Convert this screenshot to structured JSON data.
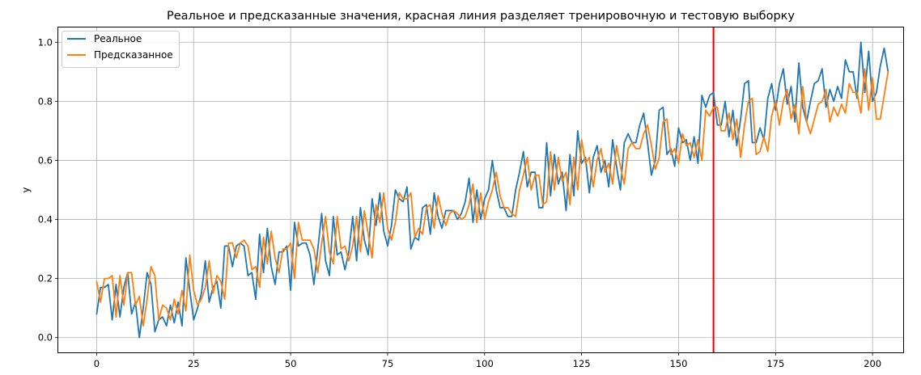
{
  "chart_data": {
    "type": "line",
    "title": "Реальное и предсказанные значения, красная линия разделяет тренировочную и тестовую выборку",
    "xlabel": "",
    "ylabel": "y",
    "xlim": [
      -9.9,
      207.9
    ],
    "ylim": [
      -0.05,
      1.05
    ],
    "xticks": [
      0,
      25,
      50,
      75,
      100,
      125,
      150,
      175,
      200
    ],
    "yticks": [
      0.0,
      0.2,
      0.4,
      0.6,
      0.8,
      1.0
    ],
    "xtick_labels": [
      "0",
      "25",
      "50",
      "75",
      "100",
      "125",
      "150",
      "175",
      "200"
    ],
    "ytick_labels": [
      "0.0",
      "0.2",
      "0.4",
      "0.6",
      "0.8",
      "1.0"
    ],
    "grid": true,
    "legend_position": "upper left",
    "split_line": {
      "x": 159,
      "color": "#e00000"
    },
    "series": [
      {
        "name": "Реальное",
        "color": "#1f77b4",
        "values": [
          0.08,
          0.17,
          0.17,
          0.18,
          0.06,
          0.18,
          0.07,
          0.17,
          0.22,
          0.08,
          0.12,
          0.0,
          0.1,
          0.22,
          0.18,
          0.02,
          0.06,
          0.07,
          0.04,
          0.11,
          0.05,
          0.12,
          0.04,
          0.27,
          0.16,
          0.06,
          0.1,
          0.15,
          0.26,
          0.12,
          0.17,
          0.19,
          0.1,
          0.31,
          0.31,
          0.24,
          0.31,
          0.32,
          0.31,
          0.21,
          0.22,
          0.13,
          0.35,
          0.22,
          0.37,
          0.24,
          0.18,
          0.29,
          0.29,
          0.31,
          0.16,
          0.39,
          0.31,
          0.32,
          0.32,
          0.28,
          0.18,
          0.3,
          0.42,
          0.26,
          0.21,
          0.41,
          0.28,
          0.29,
          0.23,
          0.29,
          0.41,
          0.26,
          0.44,
          0.33,
          0.28,
          0.47,
          0.38,
          0.49,
          0.36,
          0.31,
          0.38,
          0.5,
          0.47,
          0.46,
          0.51,
          0.3,
          0.34,
          0.33,
          0.44,
          0.45,
          0.35,
          0.49,
          0.41,
          0.37,
          0.43,
          0.43,
          0.43,
          0.4,
          0.42,
          0.46,
          0.54,
          0.39,
          0.5,
          0.4,
          0.47,
          0.5,
          0.6,
          0.5,
          0.44,
          0.44,
          0.41,
          0.41,
          0.5,
          0.56,
          0.63,
          0.51,
          0.56,
          0.56,
          0.44,
          0.44,
          0.66,
          0.48,
          0.62,
          0.52,
          0.56,
          0.43,
          0.62,
          0.48,
          0.7,
          0.59,
          0.61,
          0.49,
          0.61,
          0.65,
          0.56,
          0.6,
          0.51,
          0.67,
          0.58,
          0.5,
          0.66,
          0.69,
          0.66,
          0.66,
          0.72,
          0.76,
          0.66,
          0.55,
          0.6,
          0.77,
          0.78,
          0.62,
          0.64,
          0.58,
          0.71,
          0.66,
          0.67,
          0.6,
          0.68,
          0.59,
          0.82,
          0.78,
          0.82,
          0.83,
          0.72,
          0.72,
          0.8,
          0.68,
          0.77,
          0.65,
          0.74,
          0.86,
          0.87,
          0.66,
          0.66,
          0.71,
          0.67,
          0.81,
          0.86,
          0.77,
          0.86,
          0.91,
          0.79,
          0.85,
          0.73,
          0.93,
          0.78,
          0.73,
          0.8,
          0.86,
          0.87,
          0.91,
          0.78,
          0.84,
          0.8,
          0.85,
          0.81,
          0.94,
          0.9,
          0.9,
          0.81,
          1.0,
          0.83,
          0.97,
          0.8,
          0.83,
          0.92,
          0.98,
          0.9
        ]
      },
      {
        "name": "Предсказанное",
        "color": "#ff7f0e",
        "values": [
          0.19,
          0.12,
          0.2,
          0.2,
          0.21,
          0.07,
          0.21,
          0.11,
          0.22,
          0.22,
          0.11,
          0.14,
          0.04,
          0.13,
          0.24,
          0.21,
          0.06,
          0.11,
          0.1,
          0.06,
          0.13,
          0.08,
          0.16,
          0.09,
          0.28,
          0.16,
          0.11,
          0.13,
          0.17,
          0.26,
          0.15,
          0.21,
          0.19,
          0.13,
          0.32,
          0.32,
          0.27,
          0.32,
          0.33,
          0.31,
          0.23,
          0.24,
          0.17,
          0.34,
          0.25,
          0.36,
          0.27,
          0.22,
          0.3,
          0.3,
          0.32,
          0.2,
          0.39,
          0.33,
          0.33,
          0.33,
          0.3,
          0.22,
          0.32,
          0.41,
          0.29,
          0.25,
          0.41,
          0.3,
          0.31,
          0.26,
          0.31,
          0.41,
          0.29,
          0.43,
          0.35,
          0.27,
          0.45,
          0.39,
          0.49,
          0.37,
          0.33,
          0.39,
          0.49,
          0.47,
          0.47,
          0.49,
          0.34,
          0.37,
          0.35,
          0.44,
          0.45,
          0.37,
          0.48,
          0.42,
          0.38,
          0.42,
          0.43,
          0.42,
          0.4,
          0.41,
          0.45,
          0.52,
          0.39,
          0.49,
          0.4,
          0.46,
          0.5,
          0.56,
          0.48,
          0.44,
          0.44,
          0.42,
          0.41,
          0.5,
          0.55,
          0.61,
          0.5,
          0.55,
          0.55,
          0.45,
          0.46,
          0.63,
          0.5,
          0.61,
          0.53,
          0.56,
          0.45,
          0.61,
          0.5,
          0.67,
          0.59,
          0.61,
          0.51,
          0.6,
          0.64,
          0.56,
          0.59,
          0.52,
          0.65,
          0.58,
          0.52,
          0.64,
          0.66,
          0.64,
          0.64,
          0.69,
          0.72,
          0.65,
          0.57,
          0.61,
          0.73,
          0.74,
          0.62,
          0.64,
          0.59,
          0.69,
          0.65,
          0.66,
          0.61,
          0.67,
          0.6,
          0.77,
          0.75,
          0.78,
          0.78,
          0.7,
          0.7,
          0.76,
          0.67,
          0.74,
          0.61,
          0.72,
          0.8,
          0.81,
          0.62,
          0.63,
          0.68,
          0.63,
          0.75,
          0.8,
          0.72,
          0.8,
          0.84,
          0.74,
          0.79,
          0.69,
          0.85,
          0.73,
          0.69,
          0.74,
          0.79,
          0.8,
          0.84,
          0.73,
          0.78,
          0.75,
          0.79,
          0.76,
          0.86,
          0.83,
          0.83,
          0.76,
          0.91,
          0.77,
          0.88,
          0.74,
          0.74,
          0.82,
          0.9
        ]
      }
    ]
  }
}
